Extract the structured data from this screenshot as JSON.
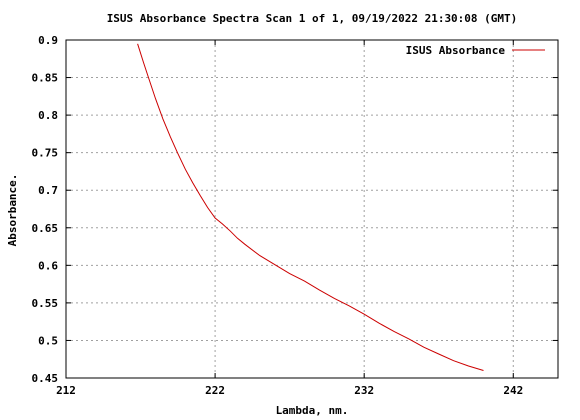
{
  "chart_data": {
    "type": "line",
    "title": "ISUS Absorbance Spectra Scan 1 of 1, 09/19/2022 21:30:08 (GMT)",
    "xlabel": "Lambda, nm.",
    "ylabel": "Absorbance.",
    "xlim": [
      212,
      245
    ],
    "ylim": [
      0.45,
      0.9
    ],
    "xticks": [
      212,
      222,
      232,
      242
    ],
    "yticks": [
      0.45,
      0.5,
      0.55,
      0.6,
      0.65,
      0.7,
      0.75,
      0.8,
      0.85,
      0.9
    ],
    "grid": true,
    "legend_position": "top-right",
    "colors": {
      "series": "#cc0000",
      "grid": "#a0a0a0",
      "axis": "#000000"
    },
    "series": [
      {
        "name": "ISUS Absorbance",
        "x": [
          216.8,
          217.2,
          217.6,
          218.0,
          218.5,
          219.0,
          219.5,
          220.0,
          220.5,
          221.0,
          221.5,
          222.0,
          222.5,
          223.0,
          223.5,
          224.0,
          225.0,
          226.0,
          227.0,
          228.0,
          229.0,
          230.0,
          231.0,
          232.0,
          233.0,
          234.0,
          235.0,
          236.0,
          237.0,
          238.0,
          239.0,
          240.0
        ],
        "y": [
          0.895,
          0.87,
          0.846,
          0.822,
          0.795,
          0.771,
          0.749,
          0.728,
          0.71,
          0.693,
          0.677,
          0.663,
          0.655,
          0.646,
          0.636,
          0.628,
          0.613,
          0.601,
          0.589,
          0.579,
          0.567,
          0.556,
          0.546,
          0.535,
          0.523,
          0.512,
          0.502,
          0.491,
          0.482,
          0.473,
          0.466,
          0.46
        ]
      }
    ]
  }
}
